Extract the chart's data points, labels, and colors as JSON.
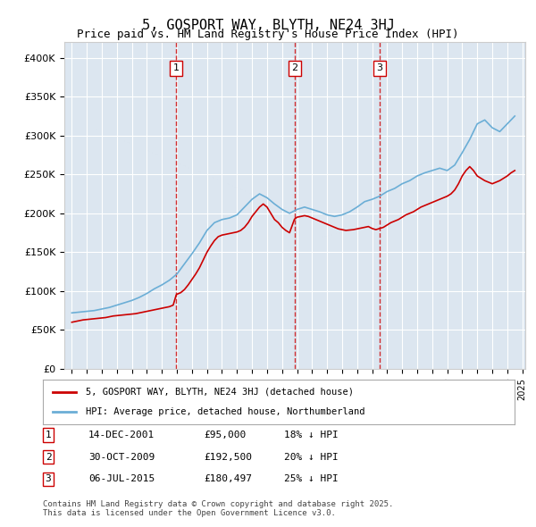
{
  "title": "5, GOSPORT WAY, BLYTH, NE24 3HJ",
  "subtitle": "Price paid vs. HM Land Registry's House Price Index (HPI)",
  "background_color": "#dce6f0",
  "plot_background": "#dce6f0",
  "ylabel": "",
  "ylim": [
    0,
    420000
  ],
  "yticks": [
    0,
    50000,
    100000,
    150000,
    200000,
    250000,
    300000,
    350000,
    400000
  ],
  "ytick_labels": [
    "£0",
    "£50K",
    "£100K",
    "£150K",
    "£200K",
    "£250K",
    "£300K",
    "£350K",
    "£400K"
  ],
  "sale_dates": [
    2001.95,
    2009.83,
    2015.5
  ],
  "sale_prices": [
    95000,
    192500,
    180497
  ],
  "sale_labels": [
    "1",
    "2",
    "3"
  ],
  "legend_red": "5, GOSPORT WAY, BLYTH, NE24 3HJ (detached house)",
  "legend_blue": "HPI: Average price, detached house, Northumberland",
  "table_rows": [
    [
      "1",
      "14-DEC-2001",
      "£95,000",
      "18% ↓ HPI"
    ],
    [
      "2",
      "30-OCT-2009",
      "£192,500",
      "20% ↓ HPI"
    ],
    [
      "3",
      "06-JUL-2015",
      "£180,497",
      "25% ↓ HPI"
    ]
  ],
  "footer": "Contains HM Land Registry data © Crown copyright and database right 2025.\nThis data is licensed under the Open Government Licence v3.0.",
  "hpi_x": [
    1995.0,
    1995.5,
    1996.0,
    1996.5,
    1997.0,
    1997.5,
    1998.0,
    1998.5,
    1999.0,
    1999.5,
    2000.0,
    2000.5,
    2001.0,
    2001.5,
    2002.0,
    2002.5,
    2003.0,
    2003.5,
    2004.0,
    2004.5,
    2005.0,
    2005.5,
    2006.0,
    2006.5,
    2007.0,
    2007.5,
    2008.0,
    2008.5,
    2009.0,
    2009.5,
    2010.0,
    2010.5,
    2011.0,
    2011.5,
    2012.0,
    2012.5,
    2013.0,
    2013.5,
    2014.0,
    2014.5,
    2015.0,
    2015.5,
    2016.0,
    2016.5,
    2017.0,
    2017.5,
    2018.0,
    2018.5,
    2019.0,
    2019.5,
    2020.0,
    2020.5,
    2021.0,
    2021.5,
    2022.0,
    2022.5,
    2023.0,
    2023.5,
    2024.0,
    2024.5
  ],
  "hpi_y": [
    72000,
    73000,
    74000,
    75000,
    77000,
    79000,
    82000,
    85000,
    88000,
    92000,
    97000,
    103000,
    108000,
    114000,
    122000,
    135000,
    148000,
    162000,
    178000,
    188000,
    192000,
    194000,
    198000,
    208000,
    218000,
    225000,
    220000,
    212000,
    205000,
    200000,
    205000,
    208000,
    205000,
    202000,
    198000,
    196000,
    198000,
    202000,
    208000,
    215000,
    218000,
    222000,
    228000,
    232000,
    238000,
    242000,
    248000,
    252000,
    255000,
    258000,
    255000,
    262000,
    278000,
    295000,
    315000,
    320000,
    310000,
    305000,
    315000,
    325000
  ],
  "price_x": [
    1995.0,
    1995.25,
    1995.5,
    1995.75,
    1996.0,
    1996.25,
    1996.5,
    1996.75,
    1997.0,
    1997.25,
    1997.5,
    1997.75,
    1998.0,
    1998.25,
    1998.5,
    1998.75,
    1999.0,
    1999.25,
    1999.5,
    1999.75,
    2000.0,
    2000.25,
    2000.5,
    2000.75,
    2001.0,
    2001.25,
    2001.5,
    2001.75,
    2001.95,
    2002.0,
    2002.25,
    2002.5,
    2002.75,
    2003.0,
    2003.25,
    2003.5,
    2003.75,
    2004.0,
    2004.25,
    2004.5,
    2004.75,
    2005.0,
    2005.25,
    2005.5,
    2005.75,
    2006.0,
    2006.25,
    2006.5,
    2006.75,
    2007.0,
    2007.25,
    2007.5,
    2007.75,
    2008.0,
    2008.25,
    2008.5,
    2008.75,
    2009.0,
    2009.25,
    2009.5,
    2009.83,
    2010.0,
    2010.25,
    2010.5,
    2010.75,
    2011.0,
    2011.25,
    2011.5,
    2011.75,
    2012.0,
    2012.25,
    2012.5,
    2012.75,
    2013.0,
    2013.25,
    2013.5,
    2013.75,
    2014.0,
    2014.25,
    2014.5,
    2014.75,
    2015.0,
    2015.25,
    2015.5,
    2015.75,
    2016.0,
    2016.25,
    2016.5,
    2016.75,
    2017.0,
    2017.25,
    2017.5,
    2017.75,
    2018.0,
    2018.25,
    2018.5,
    2018.75,
    2019.0,
    2019.25,
    2019.5,
    2019.75,
    2020.0,
    2020.25,
    2020.5,
    2020.75,
    2021.0,
    2021.25,
    2021.5,
    2021.75,
    2022.0,
    2022.25,
    2022.5,
    2022.75,
    2023.0,
    2023.25,
    2023.5,
    2023.75,
    2024.0,
    2024.25,
    2024.5
  ],
  "price_y": [
    60000,
    61000,
    62000,
    63000,
    63500,
    64000,
    64500,
    65000,
    65500,
    66000,
    67000,
    68000,
    68500,
    69000,
    69500,
    70000,
    70500,
    71000,
    72000,
    73000,
    74000,
    75000,
    76000,
    77000,
    78000,
    79000,
    80000,
    82000,
    95000,
    96000,
    98000,
    102000,
    108000,
    115000,
    122000,
    130000,
    140000,
    150000,
    158000,
    165000,
    170000,
    172000,
    173000,
    174000,
    175000,
    176000,
    178000,
    182000,
    188000,
    196000,
    202000,
    208000,
    212000,
    208000,
    200000,
    192000,
    188000,
    182000,
    178000,
    175000,
    192500,
    195000,
    196000,
    197000,
    196000,
    194000,
    192000,
    190000,
    188000,
    186000,
    184000,
    182000,
    180000,
    179000,
    178000,
    178500,
    179000,
    180000,
    181000,
    182000,
    183000,
    180497,
    179000,
    180497,
    182000,
    185000,
    188000,
    190000,
    192000,
    195000,
    198000,
    200000,
    202000,
    205000,
    208000,
    210000,
    212000,
    214000,
    216000,
    218000,
    220000,
    222000,
    225000,
    230000,
    238000,
    248000,
    255000,
    260000,
    255000,
    248000,
    245000,
    242000,
    240000,
    238000,
    240000,
    242000,
    245000,
    248000,
    252000,
    255000
  ]
}
